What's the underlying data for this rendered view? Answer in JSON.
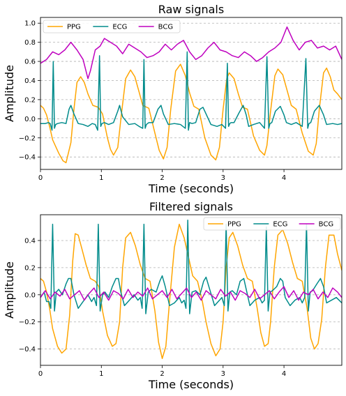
{
  "chart_data": [
    {
      "type": "line",
      "title": "Raw signals",
      "xlabel": "Time (seconds)",
      "ylabel": "Amplitude",
      "xlim": [
        0,
        4.95
      ],
      "ylim": [
        -0.53,
        1.06
      ],
      "xticks": [
        0,
        1,
        2,
        3,
        4
      ],
      "xtick_labels": [
        "0",
        "1",
        "2",
        "3",
        "4"
      ],
      "yticks": [
        -0.4,
        -0.2,
        0.0,
        0.2,
        0.4,
        0.6,
        0.8,
        1.0
      ],
      "ytick_labels": [
        "−0.4",
        "−0.2",
        "0.0",
        "0.2",
        "0.4",
        "0.6",
        "0.8",
        "1.0"
      ],
      "grid": "horizontal dashed",
      "legend_position": "upper-left",
      "series": [
        {
          "name": "PPG",
          "color": "#ffa500",
          "x": [
            0.0,
            0.05,
            0.1,
            0.15,
            0.2,
            0.3,
            0.37,
            0.42,
            0.5,
            0.55,
            0.6,
            0.66,
            0.72,
            0.78,
            0.86,
            0.95,
            1.02,
            1.1,
            1.15,
            1.2,
            1.27,
            1.33,
            1.4,
            1.48,
            1.55,
            1.62,
            1.68,
            1.78,
            1.88,
            1.95,
            2.02,
            2.08,
            2.14,
            2.22,
            2.3,
            2.38,
            2.45,
            2.52,
            2.6,
            2.7,
            2.8,
            2.88,
            2.94,
            3.0,
            3.06,
            3.1,
            3.18,
            3.25,
            3.32,
            3.4,
            3.5,
            3.6,
            3.68,
            3.72,
            3.78,
            3.85,
            3.9,
            3.98,
            4.05,
            4.12,
            4.2,
            4.3,
            4.4,
            4.48,
            4.53,
            4.58,
            4.65,
            4.7,
            4.76,
            4.82,
            4.88,
            4.95
          ],
          "y": [
            0.14,
            0.11,
            0.04,
            -0.08,
            -0.22,
            -0.36,
            -0.44,
            -0.46,
            -0.25,
            0.1,
            0.38,
            0.44,
            0.38,
            0.26,
            0.14,
            0.12,
            0.05,
            -0.2,
            -0.32,
            -0.38,
            -0.3,
            0.05,
            0.42,
            0.51,
            0.44,
            0.28,
            0.14,
            0.11,
            -0.15,
            -0.33,
            -0.42,
            -0.3,
            0.1,
            0.5,
            0.57,
            0.45,
            0.27,
            0.13,
            0.1,
            -0.2,
            -0.38,
            -0.43,
            -0.3,
            0.1,
            0.42,
            0.48,
            0.42,
            0.26,
            0.12,
            0.1,
            -0.18,
            -0.33,
            -0.38,
            -0.28,
            0.08,
            0.45,
            0.52,
            0.46,
            0.3,
            0.14,
            0.1,
            -0.15,
            -0.34,
            -0.38,
            -0.26,
            0.1,
            0.48,
            0.53,
            0.44,
            0.3,
            0.26,
            0.2
          ]
        },
        {
          "name": "ECG",
          "color": "#008b8b",
          "x": [
            0.0,
            0.08,
            0.13,
            0.16,
            0.19,
            0.21,
            0.23,
            0.25,
            0.28,
            0.35,
            0.42,
            0.47,
            0.5,
            0.55,
            0.62,
            0.7,
            0.78,
            0.85,
            0.9,
            0.94,
            0.97,
            0.99,
            1.01,
            1.05,
            1.12,
            1.2,
            1.27,
            1.3,
            1.35,
            1.45,
            1.55,
            1.62,
            1.68,
            1.7,
            1.72,
            1.74,
            1.78,
            1.85,
            1.93,
            1.98,
            2.02,
            2.1,
            2.2,
            2.3,
            2.38,
            2.41,
            2.43,
            2.45,
            2.49,
            2.55,
            2.62,
            2.67,
            2.72,
            2.8,
            2.9,
            2.98,
            3.04,
            3.07,
            3.09,
            3.11,
            3.13,
            3.18,
            3.26,
            3.33,
            3.38,
            3.42,
            3.5,
            3.6,
            3.68,
            3.72,
            3.75,
            3.77,
            3.8,
            3.86,
            3.94,
            4.0,
            4.04,
            4.12,
            4.2,
            4.3,
            4.36,
            4.39,
            4.41,
            4.44,
            4.5,
            4.58,
            4.65,
            4.7,
            4.8,
            4.88,
            4.95
          ],
          "y": [
            -0.05,
            -0.05,
            -0.04,
            -0.05,
            -0.12,
            0.6,
            -0.1,
            -0.06,
            -0.05,
            -0.04,
            -0.05,
            0.1,
            0.14,
            0.05,
            -0.05,
            -0.06,
            -0.08,
            -0.05,
            -0.06,
            -0.12,
            0.66,
            -0.08,
            -0.05,
            -0.04,
            -0.06,
            -0.04,
            0.08,
            0.14,
            0.02,
            -0.06,
            -0.05,
            -0.08,
            -0.1,
            0.62,
            -0.1,
            -0.06,
            -0.04,
            -0.04,
            0.1,
            0.14,
            0.05,
            -0.06,
            -0.05,
            -0.06,
            -0.1,
            0.7,
            -0.12,
            -0.04,
            -0.05,
            -0.04,
            0.1,
            0.12,
            0.05,
            -0.06,
            -0.08,
            -0.06,
            -0.1,
            0.58,
            -0.08,
            -0.05,
            -0.04,
            -0.04,
            0.06,
            0.14,
            0.04,
            -0.08,
            -0.06,
            -0.04,
            -0.1,
            0.65,
            -0.1,
            -0.05,
            -0.04,
            0.08,
            0.13,
            0.04,
            -0.04,
            -0.06,
            -0.04,
            -0.08,
            0.63,
            -0.1,
            -0.05,
            -0.04,
            0.08,
            0.14,
            0.04,
            -0.06,
            -0.05,
            -0.06,
            -0.05
          ]
        },
        {
          "name": "BCG",
          "color": "#bf00bf",
          "x": [
            0.0,
            0.1,
            0.2,
            0.3,
            0.4,
            0.5,
            0.6,
            0.7,
            0.78,
            0.82,
            0.9,
            0.98,
            1.05,
            1.15,
            1.25,
            1.35,
            1.45,
            1.55,
            1.65,
            1.75,
            1.85,
            1.95,
            2.05,
            2.15,
            2.25,
            2.35,
            2.45,
            2.55,
            2.65,
            2.75,
            2.85,
            2.95,
            3.05,
            3.15,
            3.25,
            3.35,
            3.45,
            3.55,
            3.65,
            3.75,
            3.85,
            3.95,
            4.05,
            4.15,
            4.25,
            4.35,
            4.45,
            4.55,
            4.65,
            4.75,
            4.85,
            4.95
          ],
          "y": [
            0.58,
            0.62,
            0.7,
            0.67,
            0.72,
            0.8,
            0.72,
            0.62,
            0.42,
            0.5,
            0.72,
            0.76,
            0.84,
            0.8,
            0.76,
            0.68,
            0.78,
            0.74,
            0.7,
            0.64,
            0.66,
            0.7,
            0.78,
            0.72,
            0.78,
            0.82,
            0.7,
            0.62,
            0.66,
            0.74,
            0.8,
            0.72,
            0.7,
            0.66,
            0.64,
            0.7,
            0.66,
            0.6,
            0.64,
            0.7,
            0.74,
            0.8,
            0.96,
            0.82,
            0.72,
            0.8,
            0.82,
            0.74,
            0.76,
            0.72,
            0.76,
            0.62
          ]
        }
      ]
    },
    {
      "type": "line",
      "title": "Filtered signals",
      "xlabel": "Time (seconds)",
      "ylabel": "Amplitude",
      "xlim": [
        0,
        4.95
      ],
      "ylim": [
        -0.52,
        0.59
      ],
      "xticks": [
        0,
        1,
        2,
        3,
        4
      ],
      "xtick_labels": [
        "0",
        "1",
        "2",
        "3",
        "4"
      ],
      "yticks": [
        -0.4,
        -0.2,
        0.0,
        0.2,
        0.4
      ],
      "ytick_labels": [
        "−0.4",
        "−0.2",
        "0.0",
        "0.2",
        "0.4"
      ],
      "grid": "horizontal dashed",
      "legend_position": "upper-right",
      "series": [
        {
          "name": "PPG",
          "color": "#ffa500",
          "x": [
            0.0,
            0.05,
            0.1,
            0.15,
            0.2,
            0.28,
            0.35,
            0.42,
            0.48,
            0.53,
            0.57,
            0.62,
            0.68,
            0.75,
            0.82,
            0.9,
            0.96,
            1.02,
            1.1,
            1.18,
            1.24,
            1.3,
            1.35,
            1.4,
            1.48,
            1.56,
            1.64,
            1.72,
            1.8,
            1.88,
            1.94,
            2.0,
            2.06,
            2.12,
            2.2,
            2.28,
            2.36,
            2.44,
            2.5,
            2.58,
            2.66,
            2.72,
            2.8,
            2.88,
            2.95,
            3.0,
            3.05,
            3.1,
            3.16,
            3.24,
            3.32,
            3.4,
            3.48,
            3.56,
            3.62,
            3.68,
            3.74,
            3.78,
            3.84,
            3.9,
            3.98,
            4.06,
            4.14,
            4.22,
            4.3,
            4.38,
            4.44,
            4.5,
            4.56,
            4.62,
            4.68,
            4.74,
            4.82,
            4.88,
            4.95
          ],
          "y": [
            0.12,
            0.1,
            0.02,
            -0.1,
            -0.25,
            -0.38,
            -0.43,
            -0.4,
            -0.15,
            0.25,
            0.45,
            0.44,
            0.34,
            0.22,
            0.12,
            0.1,
            0.06,
            -0.12,
            -0.3,
            -0.38,
            -0.36,
            -0.2,
            0.2,
            0.42,
            0.46,
            0.36,
            0.22,
            0.12,
            0.1,
            -0.12,
            -0.35,
            -0.47,
            -0.38,
            -0.05,
            0.35,
            0.52,
            0.42,
            0.26,
            0.14,
            0.1,
            -0.05,
            -0.2,
            -0.36,
            -0.45,
            -0.4,
            -0.2,
            0.2,
            0.42,
            0.46,
            0.36,
            0.22,
            0.12,
            0.1,
            -0.1,
            -0.28,
            -0.38,
            -0.36,
            -0.2,
            0.2,
            0.44,
            0.48,
            0.38,
            0.24,
            0.12,
            0.1,
            -0.1,
            -0.32,
            -0.4,
            -0.36,
            -0.18,
            0.2,
            0.44,
            0.44,
            0.3,
            0.18
          ]
        },
        {
          "name": "ECG",
          "color": "#008b8b",
          "x": [
            0.0,
            0.06,
            0.1,
            0.14,
            0.17,
            0.2,
            0.23,
            0.26,
            0.3,
            0.36,
            0.42,
            0.46,
            0.5,
            0.55,
            0.62,
            0.7,
            0.78,
            0.84,
            0.88,
            0.92,
            0.95,
            0.98,
            1.02,
            1.06,
            1.12,
            1.18,
            1.24,
            1.28,
            1.32,
            1.38,
            1.46,
            1.54,
            1.6,
            1.64,
            1.67,
            1.7,
            1.73,
            1.77,
            1.82,
            1.9,
            1.96,
            2.0,
            2.05,
            2.12,
            2.2,
            2.28,
            2.32,
            2.36,
            2.39,
            2.42,
            2.45,
            2.49,
            2.55,
            2.62,
            2.68,
            2.72,
            2.78,
            2.86,
            2.94,
            2.98,
            3.02,
            3.05,
            3.08,
            3.11,
            3.15,
            3.22,
            3.28,
            3.34,
            3.38,
            3.44,
            3.52,
            3.6,
            3.64,
            3.68,
            3.71,
            3.74,
            3.77,
            3.81,
            3.88,
            3.94,
            3.98,
            4.02,
            4.1,
            4.18,
            4.26,
            4.3,
            4.34,
            4.37,
            4.4,
            4.43,
            4.47,
            4.54,
            4.6,
            4.65,
            4.7,
            4.78,
            4.86,
            4.95
          ],
          "y": [
            -0.02,
            0.02,
            -0.05,
            -0.05,
            -0.1,
            0.52,
            -0.12,
            0.02,
            0.04,
            0.0,
            0.08,
            0.12,
            0.12,
            0.0,
            -0.1,
            -0.05,
            0.0,
            -0.05,
            -0.02,
            -0.08,
            0.52,
            -0.12,
            0.0,
            0.02,
            -0.02,
            0.06,
            0.12,
            0.12,
            0.02,
            -0.08,
            -0.04,
            0.0,
            -0.04,
            -0.02,
            -0.1,
            0.52,
            -0.14,
            0.02,
            0.04,
            0.02,
            0.1,
            0.14,
            0.06,
            -0.08,
            -0.06,
            -0.02,
            -0.06,
            -0.04,
            -0.1,
            0.55,
            -0.14,
            0.02,
            0.03,
            0.0,
            0.1,
            0.13,
            0.04,
            -0.08,
            -0.04,
            -0.02,
            -0.08,
            0.52,
            -0.12,
            0.02,
            0.03,
            0.0,
            0.1,
            0.12,
            0.04,
            -0.08,
            -0.04,
            -0.02,
            -0.06,
            -0.04,
            0.5,
            -0.12,
            0.02,
            0.03,
            0.06,
            0.12,
            0.1,
            -0.02,
            -0.08,
            -0.04,
            -0.02,
            -0.06,
            -0.02,
            0.52,
            -0.12,
            0.02,
            0.03,
            0.08,
            0.12,
            0.06,
            -0.06,
            -0.04,
            -0.02,
            -0.06
          ]
        },
        {
          "name": "BCG",
          "color": "#bf00bf",
          "x": [
            0.0,
            0.08,
            0.16,
            0.24,
            0.32,
            0.4,
            0.48,
            0.56,
            0.64,
            0.72,
            0.8,
            0.88,
            0.96,
            1.04,
            1.12,
            1.2,
            1.28,
            1.36,
            1.44,
            1.52,
            1.6,
            1.68,
            1.76,
            1.84,
            1.92,
            2.0,
            2.08,
            2.16,
            2.24,
            2.32,
            2.4,
            2.48,
            2.56,
            2.64,
            2.72,
            2.8,
            2.88,
            2.96,
            3.04,
            3.12,
            3.2,
            3.28,
            3.36,
            3.44,
            3.52,
            3.6,
            3.68,
            3.76,
            3.84,
            3.92,
            4.0,
            4.08,
            4.16,
            4.24,
            4.32,
            4.4,
            4.48,
            4.56,
            4.64,
            4.72,
            4.8,
            4.88,
            4.95
          ],
          "y": [
            -0.02,
            0.03,
            -0.03,
            0.02,
            -0.01,
            0.04,
            -0.03,
            0.0,
            0.03,
            -0.04,
            0.01,
            0.05,
            -0.02,
            0.02,
            -0.04,
            0.03,
            0.01,
            -0.03,
            0.04,
            -0.02,
            0.02,
            -0.01,
            0.05,
            -0.03,
            0.0,
            0.03,
            -0.02,
            0.04,
            -0.03,
            0.01,
            0.05,
            -0.02,
            0.02,
            -0.04,
            0.03,
            0.0,
            -0.03,
            0.04,
            -0.01,
            0.02,
            -0.04,
            0.03,
            0.01,
            -0.02,
            0.04,
            -0.03,
            0.0,
            0.03,
            -0.03,
            0.02,
            0.06,
            -0.02,
            0.03,
            -0.04,
            0.02,
            0.0,
            0.04,
            -0.03,
            0.02,
            -0.02,
            0.05,
            0.02,
            -0.02
          ]
        }
      ]
    }
  ]
}
